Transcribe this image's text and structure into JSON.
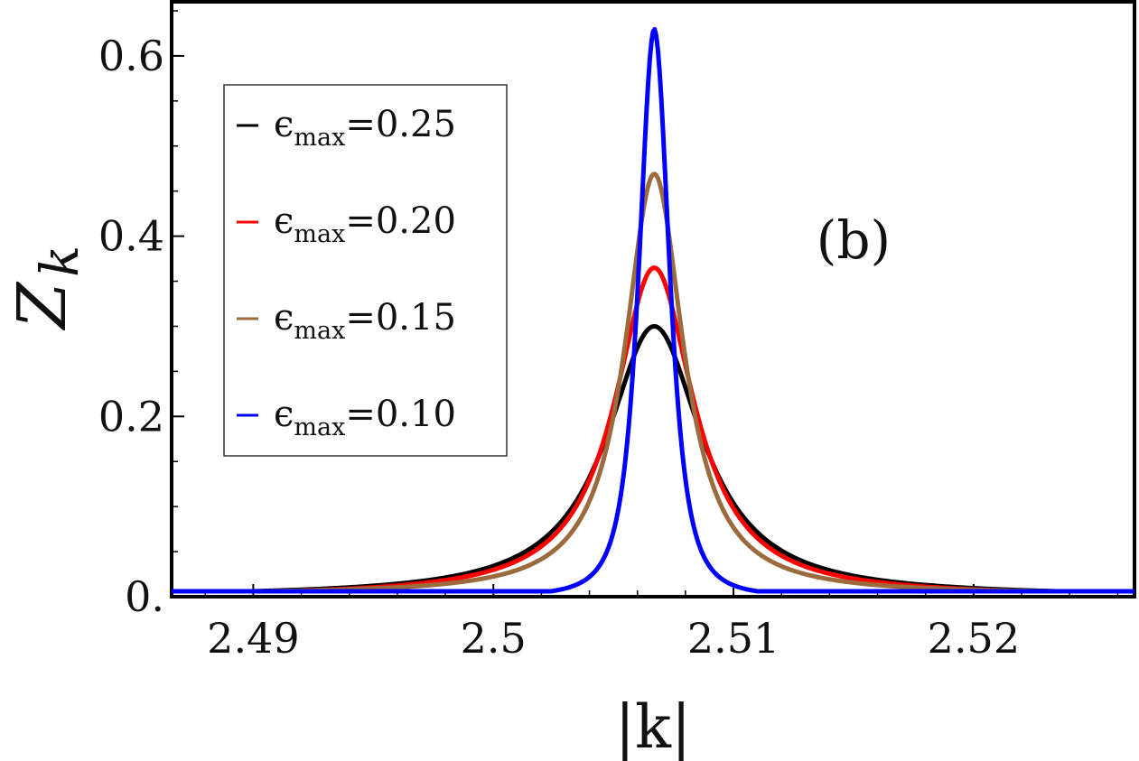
{
  "chart_data": {
    "type": "line",
    "title": "",
    "xlabel": "|k|",
    "ylabel": "Z",
    "ylabel_subscript": "k",
    "xlim": [
      2.4866,
      2.5267
    ],
    "ylim": [
      0.0,
      0.66
    ],
    "x_ticks": [
      2.49,
      2.5,
      2.51,
      2.52
    ],
    "x_tick_labels": [
      "2.49",
      "2.5",
      "2.51",
      "2.52"
    ],
    "y_ticks": [
      0.0,
      0.2,
      0.4,
      0.6
    ],
    "y_tick_labels": [
      "0.",
      "0.2",
      "0.4",
      "0.6"
    ],
    "annotation": "(b)",
    "legend_placement": "top-left",
    "peak_k": 2.5067,
    "series": [
      {
        "name": "ϵmax=0.25",
        "label_symbol": "ϵ",
        "label_sub": "max",
        "label_value": "=0.25",
        "color": "#000000",
        "peak": 0.3,
        "width": 0.0024,
        "shape": "lorentzian"
      },
      {
        "name": "ϵmax=0.20",
        "label_symbol": "ϵ",
        "label_sub": "max",
        "label_value": "=0.20",
        "color": "#ff0000",
        "peak": 0.365,
        "width": 0.002,
        "shape": "lorentzian"
      },
      {
        "name": "ϵmax=0.15",
        "label_symbol": "ϵ",
        "label_sub": "max",
        "label_value": "=0.15",
        "color": "#9b6b3d",
        "peak": 0.465,
        "width": 0.0017,
        "shape": "mixed"
      },
      {
        "name": "ϵmax=0.10",
        "label_symbol": "ϵ",
        "label_sub": "max",
        "label_value": "=0.10",
        "color": "#0000ff",
        "peak": 0.63,
        "width": 0.0011,
        "shape": "lorentzian-squared"
      }
    ]
  }
}
